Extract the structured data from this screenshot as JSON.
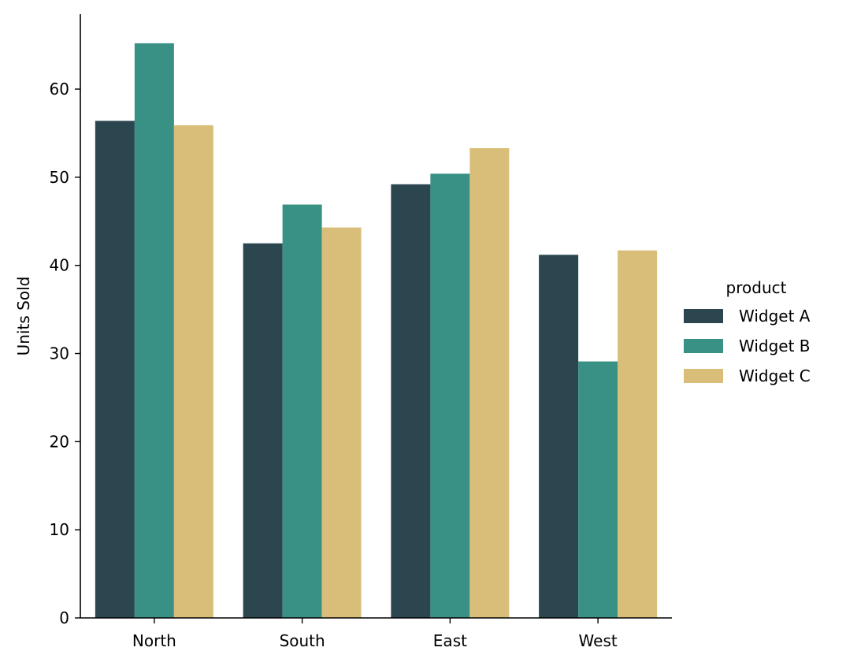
{
  "chart_data": {
    "type": "bar",
    "title": "",
    "xlabel": "",
    "ylabel": "Units Sold",
    "categories": [
      "North",
      "South",
      "East",
      "West"
    ],
    "series": [
      {
        "name": "Widget A",
        "color": "#2c4650",
        "values": [
          56.4,
          42.5,
          49.2,
          41.2
        ]
      },
      {
        "name": "Widget B",
        "color": "#389184",
        "values": [
          65.2,
          46.9,
          50.4,
          29.1
        ]
      },
      {
        "name": "Widget C",
        "color": "#d9be79",
        "values": [
          55.9,
          44.3,
          53.3,
          41.7
        ]
      }
    ],
    "ylim": [
      0,
      68.5
    ],
    "yticks": [
      0,
      10,
      20,
      30,
      40,
      50,
      60
    ],
    "grid": false,
    "legend": {
      "title": "product",
      "placement": "right"
    }
  }
}
